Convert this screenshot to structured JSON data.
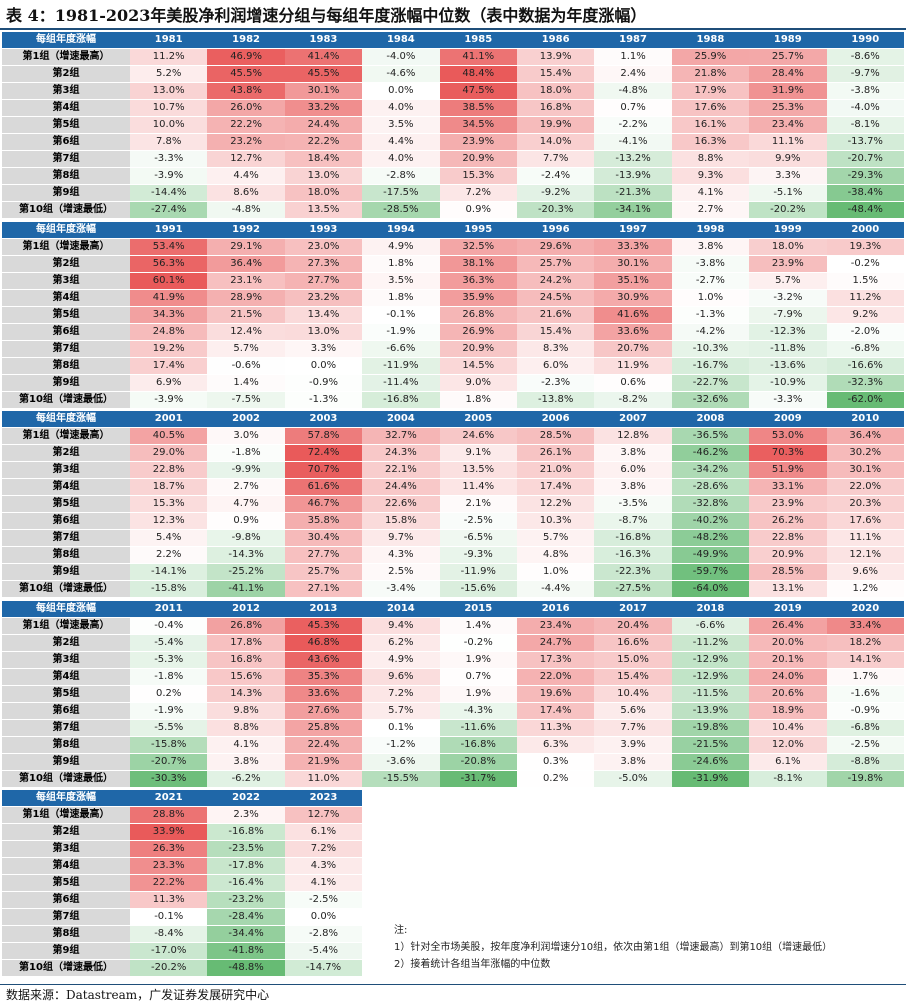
{
  "title": "表 4：1981-2023年美股净利润增速分组与每组年度涨幅中位数（表中数据为年度涨幅）",
  "header_label": "每组年度涨幅",
  "row_labels": [
    "第1组（增速最高）",
    "第2组",
    "第3组",
    "第4组",
    "第5组",
    "第6组",
    "第7组",
    "第8组",
    "第9组",
    "第10组（增速最低）"
  ],
  "colors": {
    "header_bg": "#1f67a8",
    "label_bg": "#d9d9d9",
    "positive": "#e74c4c",
    "negative": "#4caf5c",
    "neutral": "#ffffff"
  },
  "blocks": [
    {
      "years": [
        "1981",
        "1982",
        "1983",
        "1984",
        "1985",
        "1986",
        "1987",
        "1988",
        "1989",
        "1990"
      ],
      "rows": [
        [
          "11.2%",
          "46.9%",
          "41.4%",
          "-4.0%",
          "41.1%",
          "13.9%",
          "1.1%",
          "25.9%",
          "25.7%",
          "-8.6%"
        ],
        [
          "5.2%",
          "45.5%",
          "45.5%",
          "-4.6%",
          "48.4%",
          "15.4%",
          "2.4%",
          "21.8%",
          "28.4%",
          "-9.7%"
        ],
        [
          "13.0%",
          "43.8%",
          "30.1%",
          "0.0%",
          "47.5%",
          "18.0%",
          "-4.8%",
          "17.9%",
          "31.9%",
          "-3.8%"
        ],
        [
          "10.7%",
          "26.0%",
          "33.2%",
          "4.0%",
          "38.5%",
          "16.8%",
          "0.7%",
          "17.6%",
          "25.3%",
          "-4.0%"
        ],
        [
          "10.0%",
          "22.2%",
          "24.4%",
          "3.5%",
          "34.5%",
          "19.9%",
          "-2.2%",
          "16.1%",
          "23.4%",
          "-8.1%"
        ],
        [
          "7.8%",
          "23.2%",
          "22.2%",
          "4.4%",
          "23.9%",
          "14.0%",
          "-4.1%",
          "16.3%",
          "11.1%",
          "-13.7%"
        ],
        [
          "-3.3%",
          "12.7%",
          "18.4%",
          "4.0%",
          "20.9%",
          "7.7%",
          "-13.2%",
          "8.8%",
          "9.9%",
          "-20.7%"
        ],
        [
          "-3.9%",
          "4.4%",
          "13.0%",
          "-2.8%",
          "15.3%",
          "-2.4%",
          "-13.9%",
          "9.3%",
          "3.3%",
          "-29.3%"
        ],
        [
          "-14.4%",
          "8.6%",
          "18.0%",
          "-17.5%",
          "7.2%",
          "-9.2%",
          "-21.3%",
          "4.1%",
          "-5.1%",
          "-38.4%"
        ],
        [
          "-27.4%",
          "-4.8%",
          "13.5%",
          "-28.5%",
          "0.9%",
          "-20.3%",
          "-34.1%",
          "2.7%",
          "-20.2%",
          "-48.4%"
        ]
      ]
    },
    {
      "years": [
        "1991",
        "1992",
        "1993",
        "1994",
        "1995",
        "1996",
        "1997",
        "1998",
        "1999",
        "2000"
      ],
      "rows": [
        [
          "53.4%",
          "29.1%",
          "23.0%",
          "4.9%",
          "32.5%",
          "29.6%",
          "33.3%",
          "3.8%",
          "18.0%",
          "19.3%"
        ],
        [
          "56.3%",
          "36.4%",
          "27.3%",
          "1.8%",
          "38.1%",
          "25.7%",
          "30.1%",
          "-3.8%",
          "23.9%",
          "-0.2%"
        ],
        [
          "60.1%",
          "23.1%",
          "27.7%",
          "3.5%",
          "36.3%",
          "24.2%",
          "35.1%",
          "-2.7%",
          "5.7%",
          "1.5%"
        ],
        [
          "41.9%",
          "28.9%",
          "23.2%",
          "1.8%",
          "35.9%",
          "24.5%",
          "30.9%",
          "1.0%",
          "-3.2%",
          "11.2%"
        ],
        [
          "34.3%",
          "21.5%",
          "13.4%",
          "-0.1%",
          "26.8%",
          "21.6%",
          "41.6%",
          "-1.3%",
          "-7.9%",
          "9.2%"
        ],
        [
          "24.8%",
          "12.4%",
          "13.0%",
          "-1.9%",
          "26.9%",
          "15.4%",
          "33.6%",
          "-4.2%",
          "-12.3%",
          "-2.0%"
        ],
        [
          "19.2%",
          "5.7%",
          "3.3%",
          "-6.6%",
          "20.9%",
          "8.3%",
          "20.7%",
          "-10.3%",
          "-11.8%",
          "-6.8%"
        ],
        [
          "17.4%",
          "-0.6%",
          "0.0%",
          "-11.9%",
          "14.5%",
          "6.0%",
          "11.9%",
          "-16.7%",
          "-13.6%",
          "-16.6%"
        ],
        [
          "6.9%",
          "1.4%",
          "-0.9%",
          "-11.4%",
          "9.0%",
          "-2.3%",
          "0.6%",
          "-22.7%",
          "-10.9%",
          "-32.3%"
        ],
        [
          "-3.9%",
          "-7.5%",
          "-1.3%",
          "-16.8%",
          "1.8%",
          "-13.8%",
          "-8.2%",
          "-32.6%",
          "-3.3%",
          "-62.0%"
        ]
      ]
    },
    {
      "years": [
        "2001",
        "2002",
        "2003",
        "2004",
        "2005",
        "2006",
        "2007",
        "2008",
        "2009",
        "2010"
      ],
      "rows": [
        [
          "40.5%",
          "3.0%",
          "57.8%",
          "32.7%",
          "24.6%",
          "28.5%",
          "12.8%",
          "-36.5%",
          "53.0%",
          "36.4%"
        ],
        [
          "29.0%",
          "-1.8%",
          "72.4%",
          "24.3%",
          "9.1%",
          "26.1%",
          "3.8%",
          "-46.2%",
          "70.3%",
          "30.2%"
        ],
        [
          "22.8%",
          "-9.9%",
          "70.7%",
          "22.1%",
          "13.5%",
          "21.0%",
          "6.0%",
          "-34.2%",
          "51.9%",
          "30.1%"
        ],
        [
          "18.7%",
          "2.7%",
          "61.6%",
          "24.4%",
          "11.4%",
          "17.4%",
          "3.8%",
          "-28.6%",
          "33.1%",
          "22.0%"
        ],
        [
          "15.3%",
          "4.7%",
          "46.7%",
          "22.6%",
          "2.1%",
          "12.2%",
          "-3.5%",
          "-32.8%",
          "23.9%",
          "20.3%"
        ],
        [
          "12.3%",
          "0.9%",
          "35.8%",
          "15.8%",
          "-2.5%",
          "10.3%",
          "-8.7%",
          "-40.2%",
          "26.2%",
          "17.6%"
        ],
        [
          "5.4%",
          "-9.8%",
          "30.4%",
          "9.7%",
          "-6.5%",
          "5.7%",
          "-16.8%",
          "-48.2%",
          "22.8%",
          "11.1%"
        ],
        [
          "2.2%",
          "-14.3%",
          "27.7%",
          "4.3%",
          "-9.3%",
          "4.8%",
          "-16.3%",
          "-49.9%",
          "20.9%",
          "12.1%"
        ],
        [
          "-14.1%",
          "-25.2%",
          "25.7%",
          "2.5%",
          "-11.9%",
          "1.0%",
          "-22.3%",
          "-59.7%",
          "28.5%",
          "9.6%"
        ],
        [
          "-15.8%",
          "-41.1%",
          "27.1%",
          "-3.4%",
          "-15.6%",
          "-4.4%",
          "-27.5%",
          "-64.0%",
          "13.1%",
          "1.2%"
        ]
      ]
    },
    {
      "years": [
        "2011",
        "2012",
        "2013",
        "2014",
        "2015",
        "2016",
        "2017",
        "2018",
        "2019",
        "2020"
      ],
      "rows": [
        [
          "-0.4%",
          "26.8%",
          "45.3%",
          "9.4%",
          "1.4%",
          "23.4%",
          "20.4%",
          "-6.6%",
          "26.4%",
          "33.4%"
        ],
        [
          "-5.4%",
          "17.8%",
          "46.8%",
          "6.2%",
          "-0.2%",
          "24.7%",
          "16.6%",
          "-11.2%",
          "20.0%",
          "18.2%"
        ],
        [
          "-5.3%",
          "16.8%",
          "43.6%",
          "4.9%",
          "1.9%",
          "17.3%",
          "15.0%",
          "-12.9%",
          "20.1%",
          "14.1%"
        ],
        [
          "-1.8%",
          "15.6%",
          "35.3%",
          "9.6%",
          "0.7%",
          "22.0%",
          "15.4%",
          "-12.9%",
          "24.0%",
          "1.7%"
        ],
        [
          "0.2%",
          "14.3%",
          "33.6%",
          "7.2%",
          "1.9%",
          "19.6%",
          "10.4%",
          "-11.5%",
          "20.6%",
          "-1.6%"
        ],
        [
          "-1.9%",
          "9.8%",
          "27.6%",
          "5.7%",
          "-4.3%",
          "17.4%",
          "5.6%",
          "-13.9%",
          "18.9%",
          "-0.9%"
        ],
        [
          "-5.5%",
          "8.8%",
          "25.8%",
          "0.1%",
          "-11.6%",
          "11.3%",
          "7.7%",
          "-19.8%",
          "10.4%",
          "-6.8%"
        ],
        [
          "-15.8%",
          "4.1%",
          "22.4%",
          "-1.2%",
          "-16.8%",
          "6.3%",
          "3.9%",
          "-21.5%",
          "12.0%",
          "-2.5%"
        ],
        [
          "-20.7%",
          "3.8%",
          "21.9%",
          "-3.6%",
          "-20.8%",
          "0.3%",
          "3.8%",
          "-24.6%",
          "6.1%",
          "-8.8%"
        ],
        [
          "-30.3%",
          "-6.2%",
          "11.0%",
          "-15.5%",
          "-31.7%",
          "0.2%",
          "-5.0%",
          "-31.9%",
          "-8.1%",
          "-19.8%"
        ]
      ]
    },
    {
      "years": [
        "2021",
        "2022",
        "2023"
      ],
      "rows": [
        [
          "28.8%",
          "2.3%",
          "12.7%"
        ],
        [
          "33.9%",
          "-16.8%",
          "6.1%"
        ],
        [
          "26.3%",
          "-23.5%",
          "7.2%"
        ],
        [
          "23.3%",
          "-17.8%",
          "4.3%"
        ],
        [
          "22.2%",
          "-16.4%",
          "4.1%"
        ],
        [
          "11.3%",
          "-23.2%",
          "-2.5%"
        ],
        [
          "-0.1%",
          "-28.4%",
          "0.0%"
        ],
        [
          "-8.4%",
          "-34.4%",
          "-2.8%"
        ],
        [
          "-17.0%",
          "-41.8%",
          "-5.4%"
        ],
        [
          "-20.2%",
          "-48.8%",
          "-14.7%"
        ]
      ]
    }
  ],
  "notes": {
    "heading": "注:",
    "items": [
      "1）针对全市场美股，按年度净利润增速分10组，依次由第1组（增速最高）到第10组（增速最低）",
      "2）接着统计各组当年涨幅的中位数"
    ]
  },
  "source": "数据来源：Datastream，广发证券发展研究中心"
}
